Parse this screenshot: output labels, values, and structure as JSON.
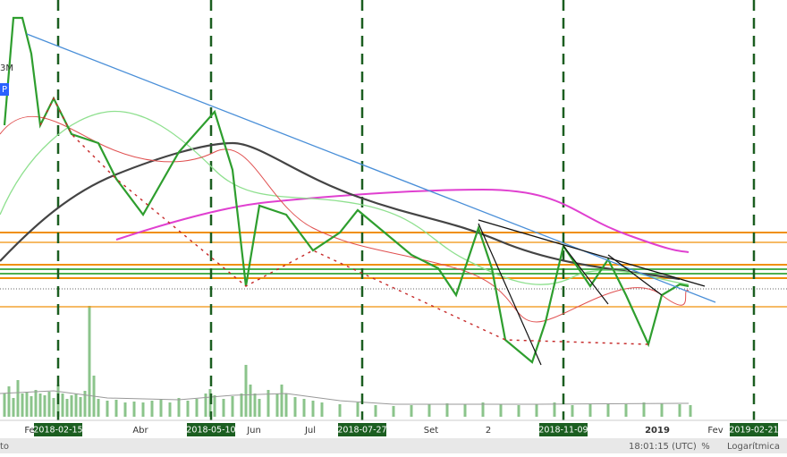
{
  "left_labels": {
    "volume_tag": "3M",
    "marker": "P"
  },
  "x_axis_labels": [
    "Fe",
    "Abr",
    "Jun",
    "Jul",
    "Set",
    "2",
    "2019",
    "Fev"
  ],
  "date_markers": [
    "2018-02-15",
    "2018-05-10",
    "2018-07-27",
    "2018-11-09",
    "2019-02-21"
  ],
  "status_bar": {
    "left": "to",
    "time": "18:01:15 (UTC)",
    "percent": "%",
    "scale": "Logarítmica"
  }
}
